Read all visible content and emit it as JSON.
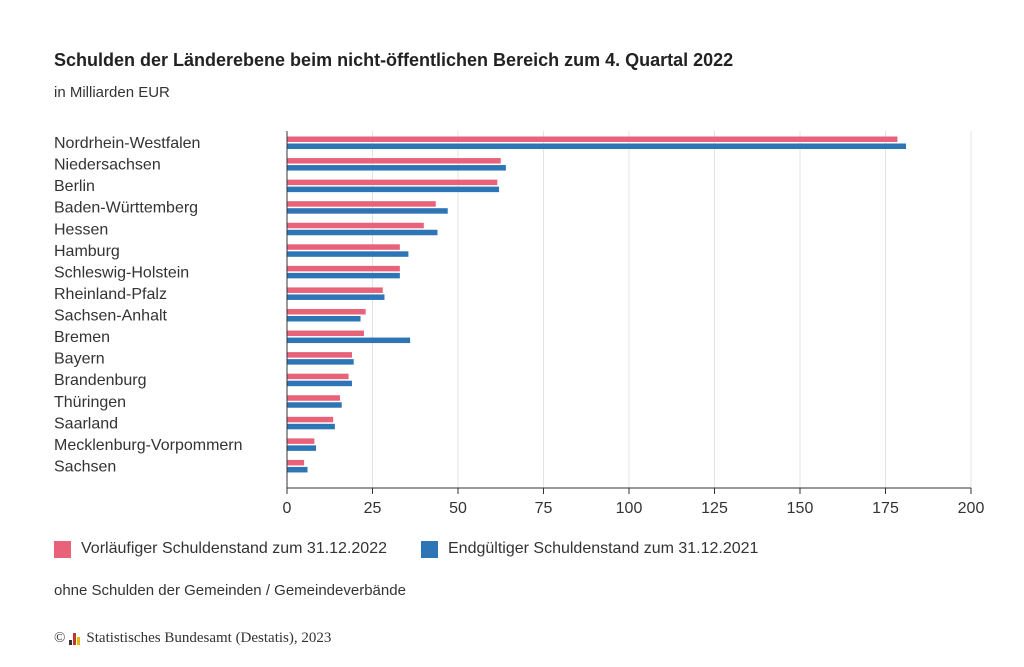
{
  "header": {
    "title": "Schulden der Länderebene beim nicht-öffentlichen Bereich zum 4. Quartal 2022",
    "subtitle": "in Milliarden EUR"
  },
  "legend": {
    "items": [
      {
        "label": "Vorläufiger Schuldenstand zum 31.12.2022",
        "color": "#e8627a"
      },
      {
        "label": "Endgültiger Schuldenstand zum 31.12.2021",
        "color": "#2e75b6"
      }
    ]
  },
  "footer": {
    "note": "ohne Schulden der Gemeinden / Gemeindeverbände",
    "copyright_symbol": "©",
    "source": "Statistisches Bundesamt (Destatis), 2023"
  },
  "chart_data": {
    "type": "bar",
    "orientation": "horizontal",
    "title": "Schulden der Länderebene beim nicht-öffentlichen Bereich zum 4. Quartal 2022",
    "subtitle": "in Milliarden EUR",
    "categories": [
      "Nordrhein-Westfalen",
      "Niedersachsen",
      "Berlin",
      "Baden-Württemberg",
      "Hessen",
      "Hamburg",
      "Schleswig-Holstein",
      "Rheinland-Pfalz",
      "Sachsen-Anhalt",
      "Bremen",
      "Bayern",
      "Brandenburg",
      "Thüringen",
      "Saarland",
      "Mecklenburg-Vorpommern",
      "Sachsen"
    ],
    "series": [
      {
        "name": "Vorläufiger Schuldenstand zum 31.12.2022",
        "color": "#e8627a",
        "values": [
          178.5,
          62.5,
          61.5,
          43.5,
          40,
          33,
          33,
          28,
          23,
          22.5,
          19,
          18,
          15.5,
          13.5,
          8,
          5
        ]
      },
      {
        "name": "Endgültiger Schuldenstand zum 31.12.2021",
        "color": "#2e75b6",
        "values": [
          181,
          64,
          62,
          47,
          44,
          35.5,
          33,
          28.5,
          21.5,
          36,
          19.5,
          19,
          16,
          14,
          8.5,
          6
        ]
      }
    ],
    "xlim": [
      0,
      200
    ],
    "xticks": [
      0,
      25,
      50,
      75,
      100,
      125,
      150,
      175,
      200
    ],
    "grid": true,
    "legend_position": "bottom"
  }
}
